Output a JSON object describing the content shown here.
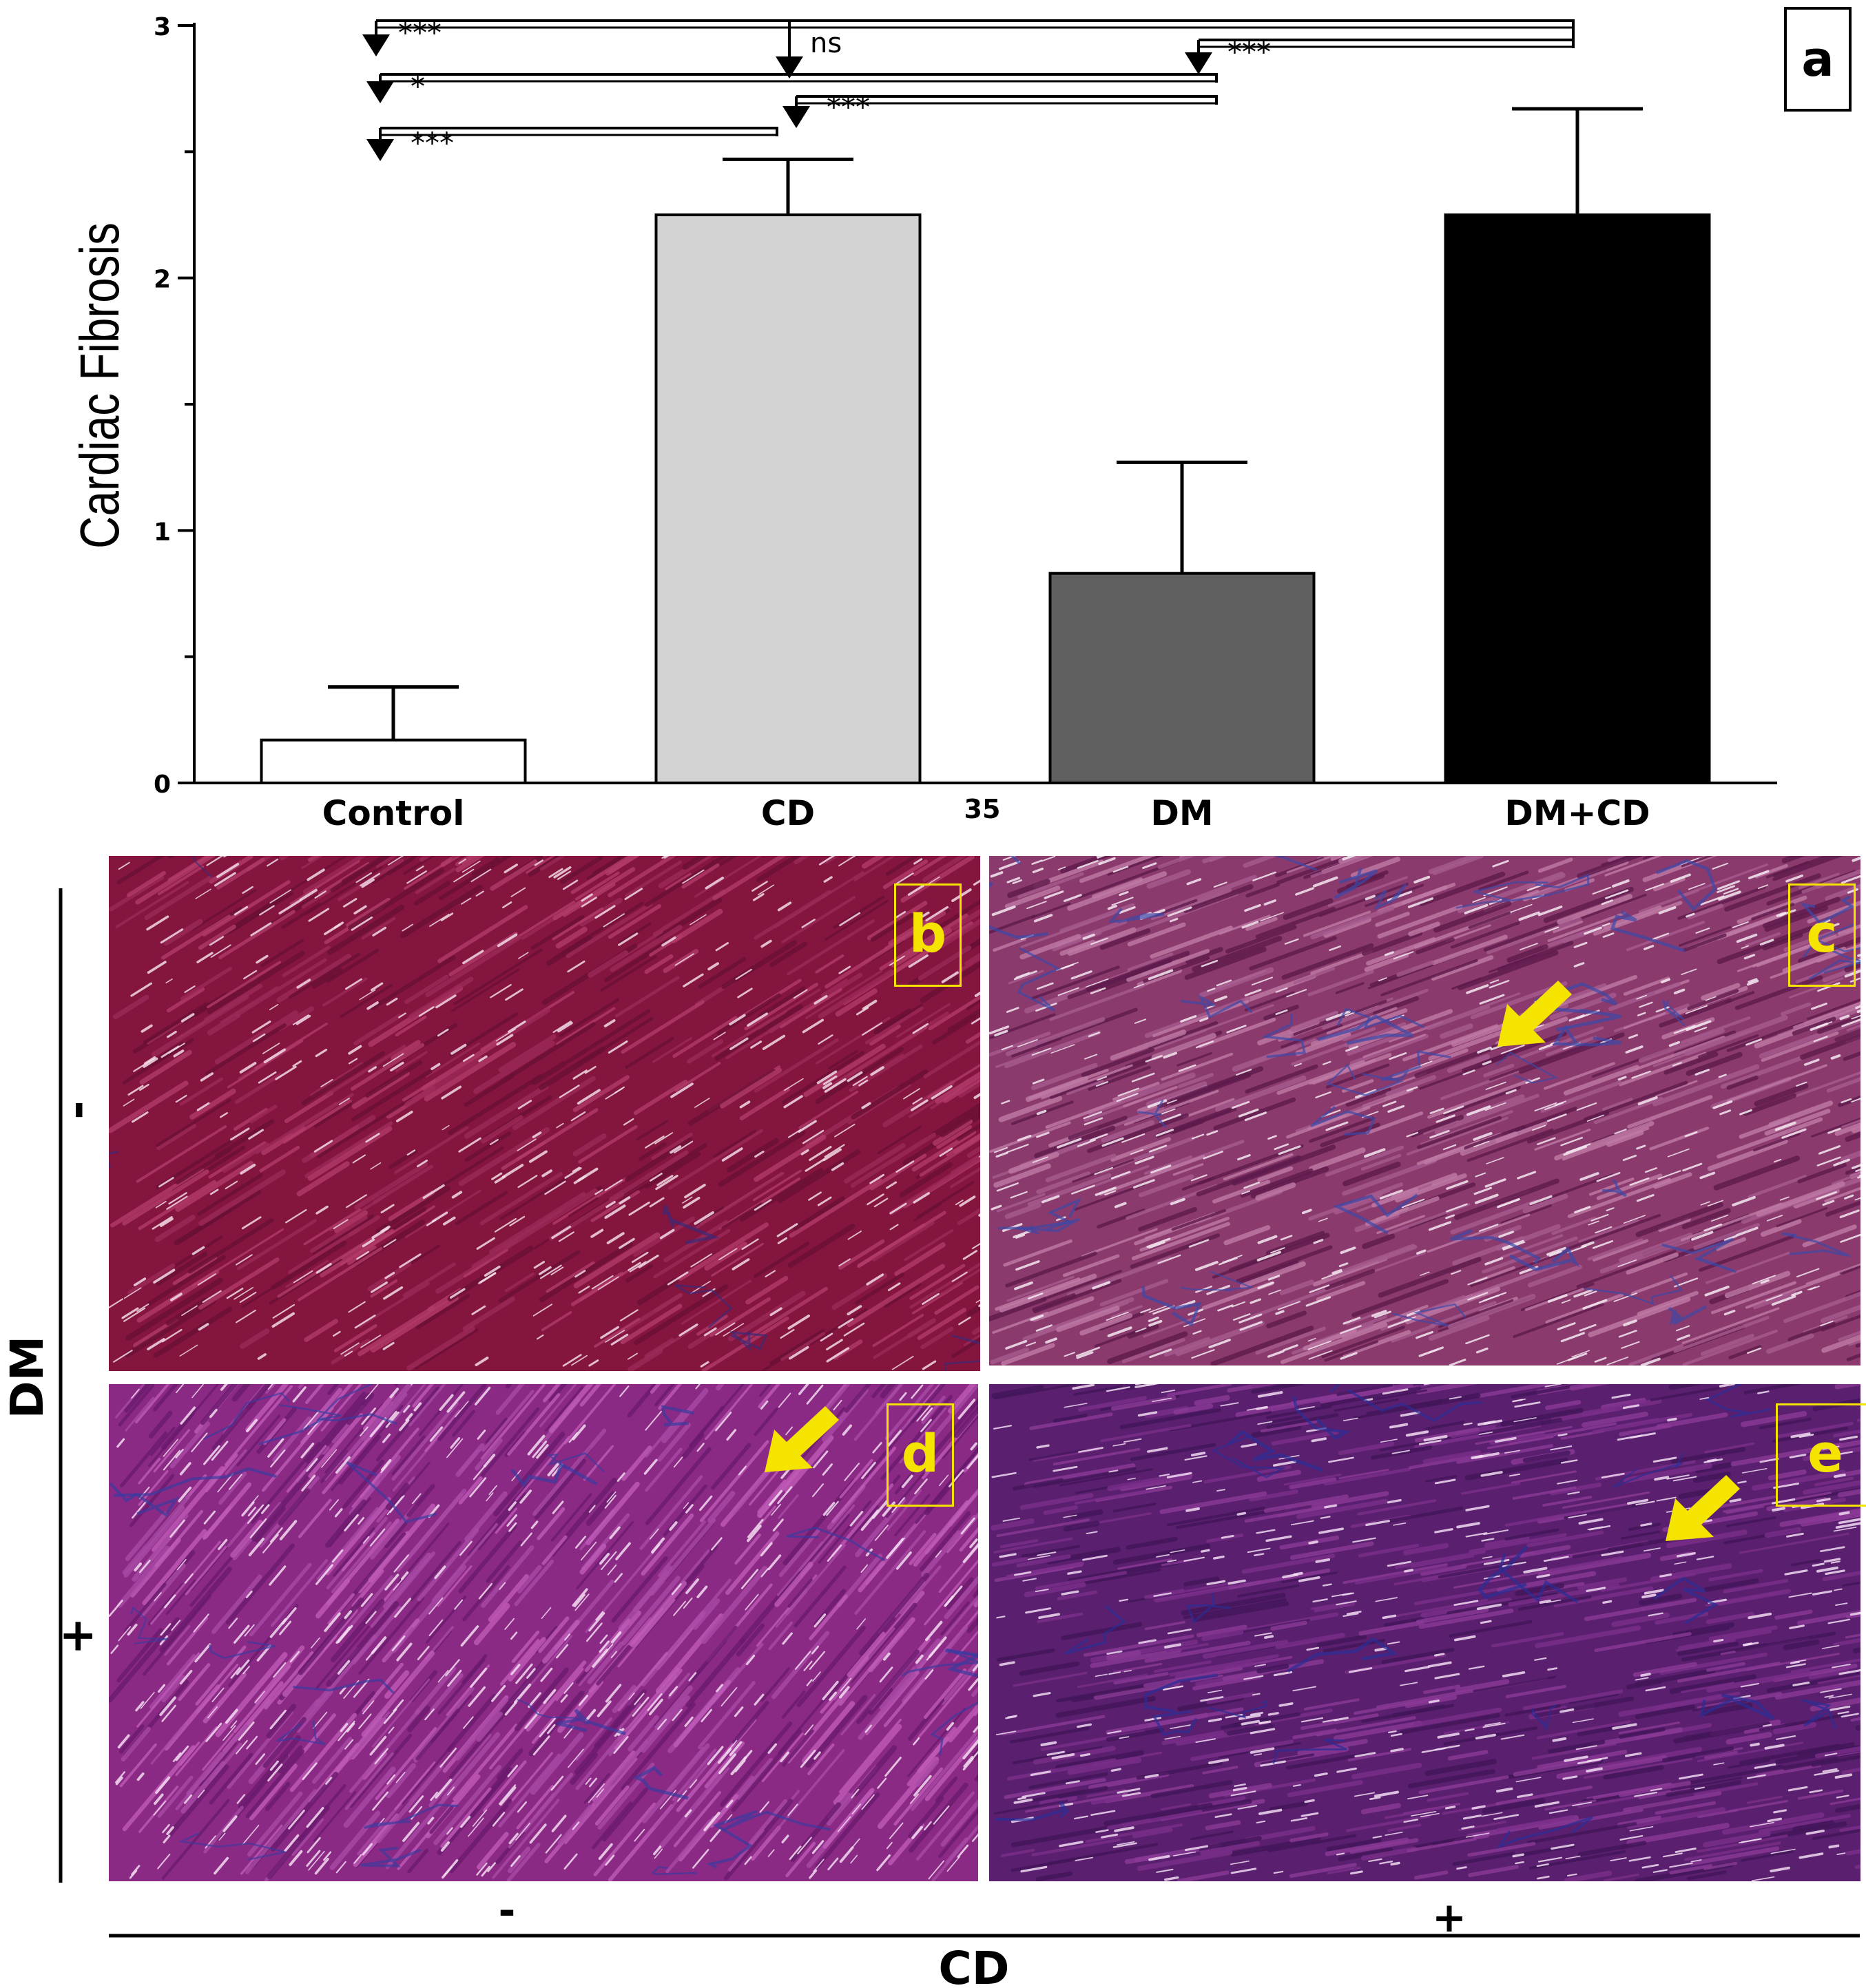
{
  "chart_data": {
    "type": "bar",
    "categories": [
      "Control",
      "CD",
      "DM",
      "DM+CD"
    ],
    "values": [
      0.17,
      2.25,
      0.83,
      2.25
    ],
    "errors": [
      0.21,
      0.22,
      0.44,
      0.42
    ],
    "bar_colors": [
      "#ffffff",
      "#d3d3d3",
      "#5f5f5f",
      "#000000"
    ],
    "ylabel": "Cardiac Fibrosis",
    "ylim": [
      0,
      3
    ],
    "yticks": [
      0,
      1,
      2,
      3
    ],
    "stray_label": "35",
    "panel_label": "a",
    "comparisons": [
      {
        "from": "Control",
        "to": "DM+CD",
        "label": "***"
      },
      {
        "from": "Control",
        "to": "DM",
        "label": "*"
      },
      {
        "from": "Control",
        "to": "CD",
        "label": "***"
      },
      {
        "from": "CD",
        "to": "DM+CD",
        "label": "ns"
      },
      {
        "from": "CD",
        "to": "DM",
        "label": "***"
      },
      {
        "from": "DM",
        "to": "DM+CD",
        "label": "***"
      }
    ]
  },
  "micrographs": {
    "panels": [
      {
        "label": "b"
      },
      {
        "label": "c"
      },
      {
        "label": "d"
      },
      {
        "label": "e"
      }
    ],
    "arrow_color": "#f5e400",
    "dm_axis": {
      "label": "DM",
      "minus": "-",
      "plus": "+"
    },
    "cd_axis": {
      "label": "CD",
      "minus": "-",
      "plus": "+"
    }
  }
}
